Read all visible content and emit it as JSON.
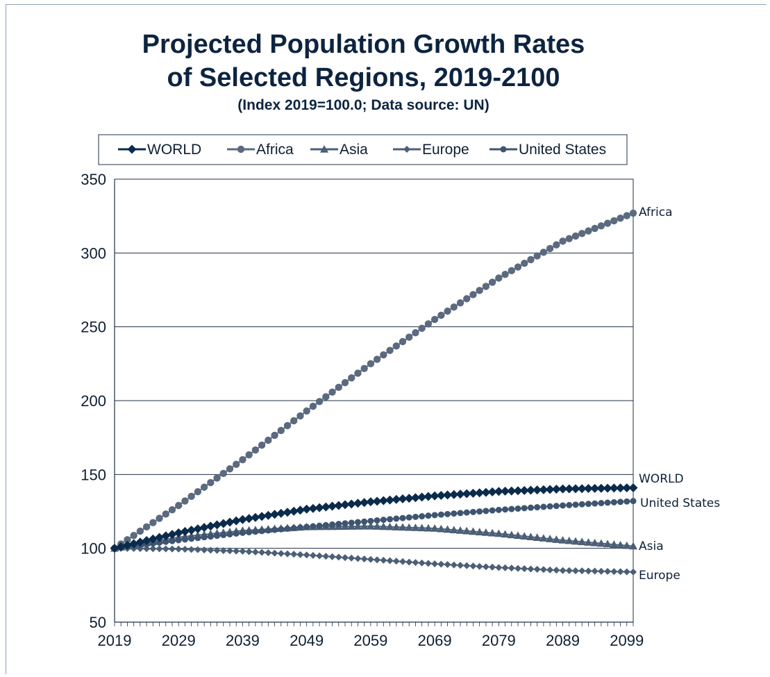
{
  "chart_data": {
    "type": "line",
    "title": "Projected Population Growth Rates",
    "title_line2": "of Selected Regions, 2019-2100",
    "subtitle": "(Index 2019=100.0; Data source: UN)",
    "xlabel": "",
    "ylabel": "",
    "x_range": [
      2019,
      2100
    ],
    "ylim": [
      50,
      350
    ],
    "y_ticks": [
      "50",
      "100",
      "150",
      "200",
      "250",
      "300",
      "350"
    ],
    "x_ticks": [
      "2019",
      "2029",
      "2039",
      "2049",
      "2059",
      "2069",
      "2079",
      "2089",
      "2099"
    ],
    "grid": true,
    "legend": "top",
    "x_anchor": [
      2019,
      2029,
      2039,
      2049,
      2059,
      2069,
      2079,
      2089,
      2100
    ],
    "series": [
      {
        "name": "WORLD",
        "end_label": "WORLD",
        "marker": "diamond",
        "color": "#0b2b4c",
        "values": [
          100,
          110.5,
          119.5,
          126.5,
          131.5,
          135.5,
          138.5,
          140.2,
          141
        ]
      },
      {
        "name": "Africa",
        "end_label": "Africa",
        "marker": "circle",
        "color": "#5b6a7e",
        "values": [
          100,
          129,
          160,
          193,
          225,
          255,
          283,
          308,
          327
        ]
      },
      {
        "name": "Asia",
        "end_label": "Asia",
        "marker": "triangle",
        "color": "#4c5f77",
        "values": [
          100,
          107.5,
          112,
          114.5,
          115,
          113.5,
          110,
          105.5,
          101.5
        ]
      },
      {
        "name": "Europe",
        "end_label": "Europe",
        "marker": "diamond-small",
        "color": "#4c5f77",
        "values": [
          100,
          99.5,
          98,
          95.5,
          92.5,
          89.5,
          87,
          85,
          84
        ]
      },
      {
        "name": "United States",
        "end_label": "United States",
        "marker": "circle-small",
        "color": "#3e5470",
        "values": [
          100,
          105.5,
          110.5,
          114.5,
          118.5,
          122.5,
          126,
          129,
          132
        ]
      }
    ]
  }
}
